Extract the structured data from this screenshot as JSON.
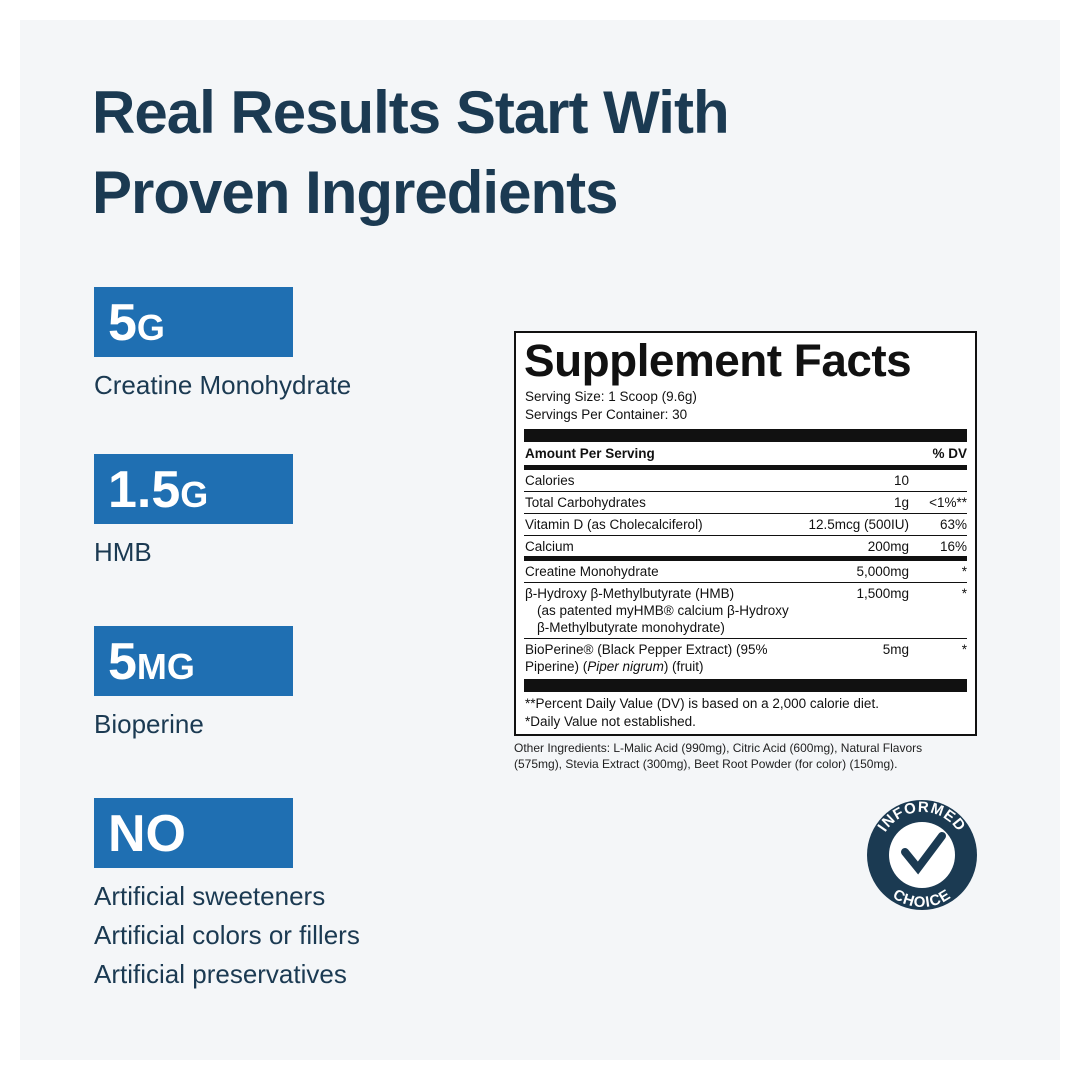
{
  "header": {
    "title": [
      "Real Results Start With",
      "Proven Ingredients"
    ]
  },
  "highlights": [
    {
      "amount": "5",
      "unit": "G",
      "lines": [
        "Creatine Monohydrate"
      ]
    },
    {
      "amount": "1.5",
      "unit": "G",
      "lines": [
        "HMB"
      ]
    },
    {
      "amount": "5",
      "unit": "MG",
      "lines": [
        "Bioperine"
      ]
    },
    {
      "amount": "NO",
      "lines": [
        "Artificial sweeteners",
        "Artificial colors or fillers",
        "Artificial preservatives"
      ]
    }
  ],
  "facts": {
    "title": "Supplement Facts",
    "serving_size": "Serving Size: 1 Scoop (9.6g)",
    "servings": "Servings Per Container: 30",
    "amount_header": "Amount Per Serving",
    "dv_header": "% DV",
    "groups": [
      [
        {
          "lines": [
            "Calories"
          ],
          "amount": "10"
        },
        {
          "lines": [
            "Total Carbohydrates"
          ],
          "amount": "1g",
          "dv": "<1%**"
        },
        {
          "lines": [
            "Vitamin D (as Cholecalciferol)"
          ],
          "amount": "12.5mcg (500IU)",
          "dv": "63%"
        },
        {
          "lines": [
            "Calcium"
          ],
          "amount": "200mg",
          "dv": "16%"
        }
      ],
      [
        {
          "lines": [
            "Creatine Monohydrate"
          ],
          "amount": "5,000mg",
          "dv": "*"
        },
        {
          "lines": [
            "β-Hydroxy β-Methylbutyrate (HMB)",
            "(as patented myHMB® calcium β-Hydroxy",
            "β-Methylbutyrate monohydrate)"
          ],
          "amount": "1,500mg",
          "dv": "*",
          "wrap_indent": true
        },
        {
          "lines": [
            "BioPerine® (Black Pepper Extract) (95%",
            [
              {
                "text": "Piperine) ("
              },
              {
                "text": "Piper nigrum",
                "italic": true
              },
              {
                "text": ") (fruit)"
              }
            ]
          ],
          "amount": "5mg",
          "dv": "*"
        }
      ]
    ],
    "footnotes": [
      "**Percent Daily Value (DV) is based on a 2,000 calorie diet.",
      "*Daily Value not established."
    ],
    "other_ingredients": [
      "Other Ingredients: L-Malic Acid (990mg), Citric Acid (600mg), Natural Flavors",
      "(575mg), Stevia Extract (300mg), Beet Root Powder (for color) (150mg)."
    ]
  },
  "badge": {
    "top": "INFORMED",
    "bottom": "CHOICE"
  }
}
